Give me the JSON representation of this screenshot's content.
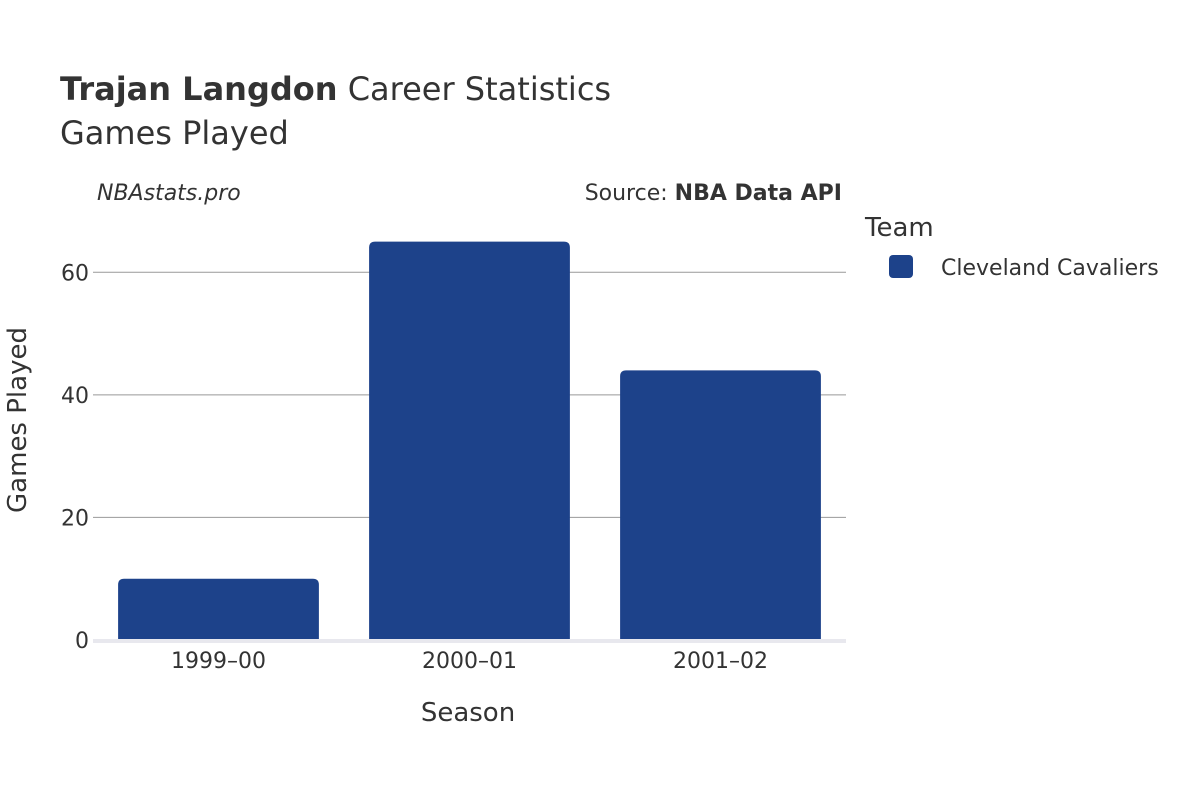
{
  "header": {
    "player_name": "Trajan Langdon",
    "title_suffix": "Career Statistics",
    "subtitle": "Games Played",
    "watermark": "NBAstats.pro",
    "source_prefix": "Source: ",
    "source_name": "NBA Data API"
  },
  "chart_data": {
    "type": "bar",
    "title": "Trajan Langdon Career Statistics",
    "subtitle": "Games Played",
    "xlabel": "Season",
    "ylabel": "Games Played",
    "categories": [
      "1999–00",
      "2000–01",
      "2001–02"
    ],
    "series": [
      {
        "name": "Cleveland Cavaliers",
        "values": [
          10,
          65,
          44
        ],
        "color": "#1d428a"
      }
    ],
    "ylim": [
      0,
      70
    ],
    "yticks": [
      0,
      20,
      40,
      60
    ],
    "grid": true,
    "legend": {
      "title": "Team",
      "placement": "right"
    }
  }
}
